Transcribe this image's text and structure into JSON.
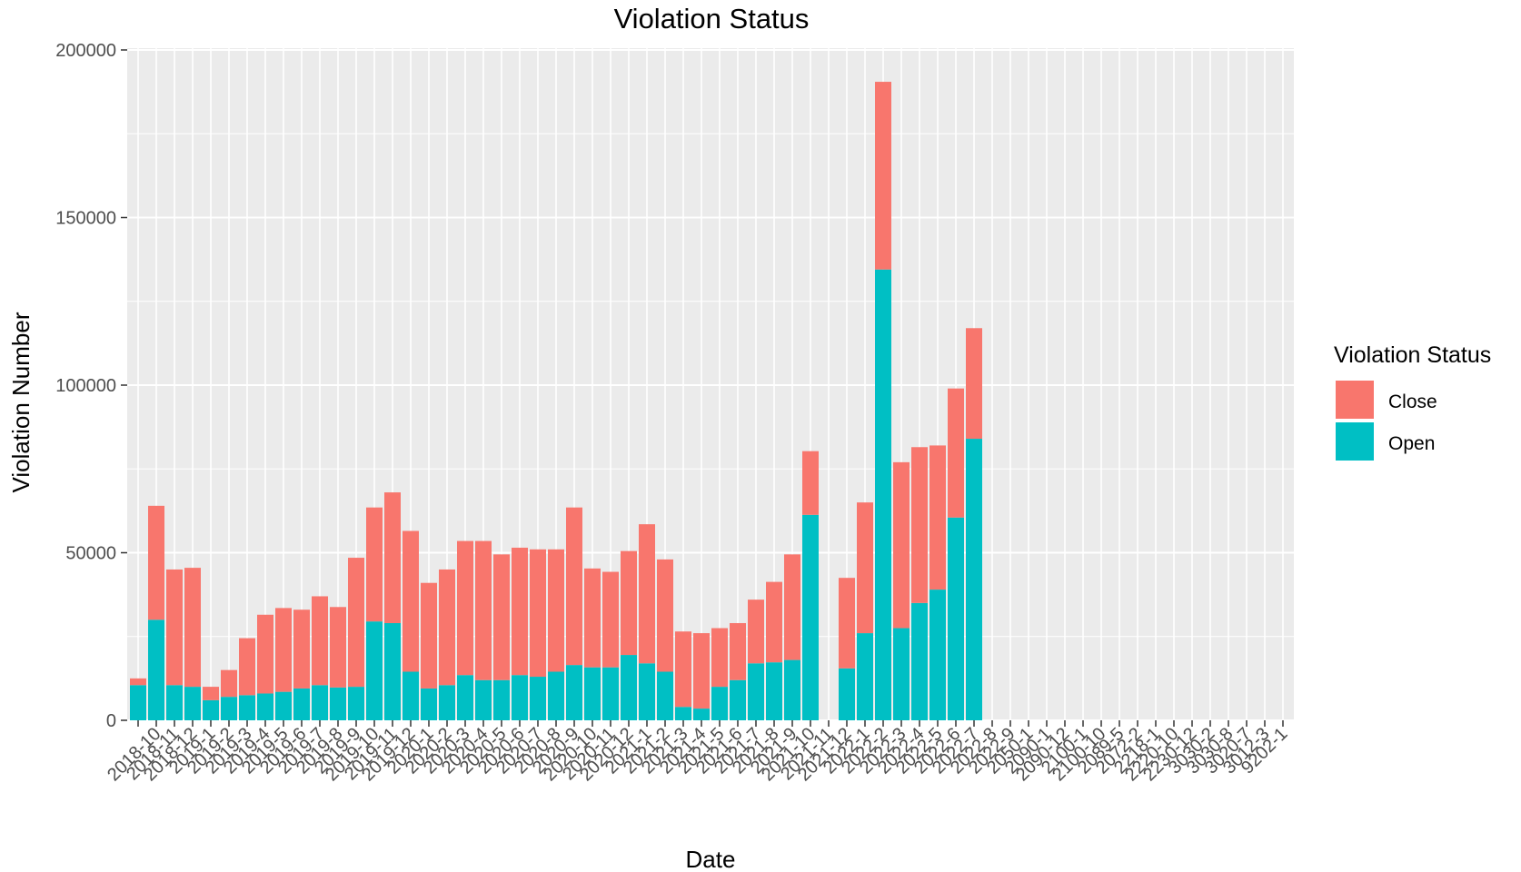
{
  "chart_data": {
    "type": "bar",
    "stacked": true,
    "title": "Violation Status",
    "xlabel": "Date",
    "ylabel": "Violation Number",
    "ylim": [
      0,
      200000
    ],
    "y_ticks": [
      0,
      50000,
      100000,
      150000,
      200000
    ],
    "x_tick_labels": [
      "",
      "2018-10",
      "2018-11",
      "2018-12",
      "2019-1",
      "2019-2",
      "2019-3",
      "2019-4",
      "2019-5",
      "2019-6",
      "2019-7",
      "2019-8",
      "2019-9",
      "2019-10",
      "2019-11",
      "2019-12",
      "2020-1",
      "2020-2",
      "2020-3",
      "2020-4",
      "2020-5",
      "2020-6",
      "2020-7",
      "2020-8",
      "2020-9",
      "2020-10",
      "2020-11",
      "2020-12",
      "2021-1",
      "2021-2",
      "2021-3",
      "2021-4",
      "2021-5",
      "2021-6",
      "2021-7",
      "2021-8",
      "2021-9",
      "2021-10",
      "2021-11",
      "2021-12",
      "2022-1",
      "2022-2",
      "2022-3",
      "2022-4",
      "2022-5",
      "2022-6",
      "2022-7",
      "2022-8",
      "2022-9",
      "2050-1",
      "2090-1",
      "2090-12",
      "2100-1",
      "2100-10",
      "2089-5",
      "2072-2",
      "2218-1",
      "2220-10",
      "2230-12",
      "3030-2",
      "3030-8",
      "3020-7",
      "3012-3",
      "9202-1"
    ],
    "legend": {
      "title": "Violation Status",
      "position": "right",
      "entries": [
        {
          "name": "Close",
          "color": "#F8766D"
        },
        {
          "name": "Open",
          "color": "#00BFC4"
        }
      ]
    },
    "series": [
      {
        "name": "Close",
        "color": "#F8766D",
        "values": [
          2000,
          34000,
          34500,
          35500,
          4000,
          8000,
          17000,
          23500,
          25000,
          23500,
          26500,
          24000,
          38500,
          34000,
          39000,
          42000,
          31500,
          34500,
          40000,
          41500,
          37500,
          38000,
          38000,
          36500,
          47000,
          29500,
          28500,
          31000,
          41500,
          33500,
          22500,
          22500,
          17500,
          17000,
          19000,
          24000,
          31500,
          19000,
          0,
          27000,
          39000,
          56000,
          49500,
          46500,
          43000,
          38500,
          33000,
          0,
          0,
          0,
          0,
          0,
          0,
          0,
          0,
          0,
          0,
          0,
          0,
          0,
          0,
          0,
          0
        ]
      },
      {
        "name": "Open",
        "color": "#00BFC4",
        "values": [
          10500,
          30000,
          10500,
          10000,
          6000,
          7000,
          7500,
          8000,
          8500,
          9500,
          10500,
          9800,
          10000,
          29500,
          29000,
          14500,
          9500,
          10500,
          13500,
          12000,
          12000,
          13500,
          13000,
          14500,
          16500,
          15800,
          15800,
          19500,
          17000,
          14500,
          4000,
          3500,
          10000,
          12000,
          17000,
          17300,
          18000,
          61300,
          0,
          15500,
          26000,
          134500,
          27500,
          35000,
          39000,
          60500,
          84000,
          0,
          0,
          0,
          0,
          0,
          0,
          0,
          0,
          0,
          0,
          0,
          0,
          0,
          0,
          0,
          0
        ]
      }
    ]
  }
}
